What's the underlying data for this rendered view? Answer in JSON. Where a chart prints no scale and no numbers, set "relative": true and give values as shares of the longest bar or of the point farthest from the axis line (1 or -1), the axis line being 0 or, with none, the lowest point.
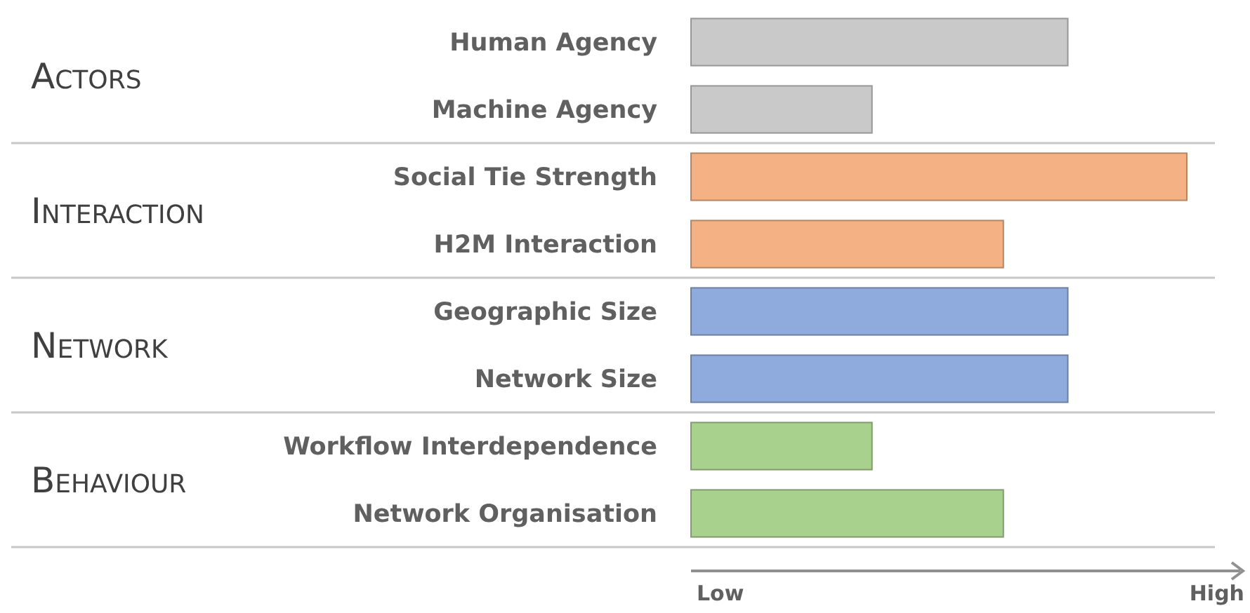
{
  "chart_data": {
    "type": "bar",
    "orientation": "horizontal",
    "relative": true,
    "categories": [
      "Human Agency",
      "Machine Agency",
      "Social Tie Strength",
      "H2M Interaction",
      "Geographic Size",
      "Network Size",
      "Workflow Interdependence",
      "Network Organisation"
    ],
    "values": [
      0.76,
      0.365,
      1,
      0.63,
      0.76,
      0.76,
      0.365,
      0.63
    ],
    "colors": [
      "#c9c9c9",
      "#c9c9c9",
      "#f4b183",
      "#f4b183",
      "#8faadc",
      "#8faadc",
      "#a9d18e",
      "#a9d18e"
    ],
    "annotations": [
      "Actors",
      "Interaction",
      "Network",
      "Behaviour",
      "Low",
      "High"
    ]
  }
}
